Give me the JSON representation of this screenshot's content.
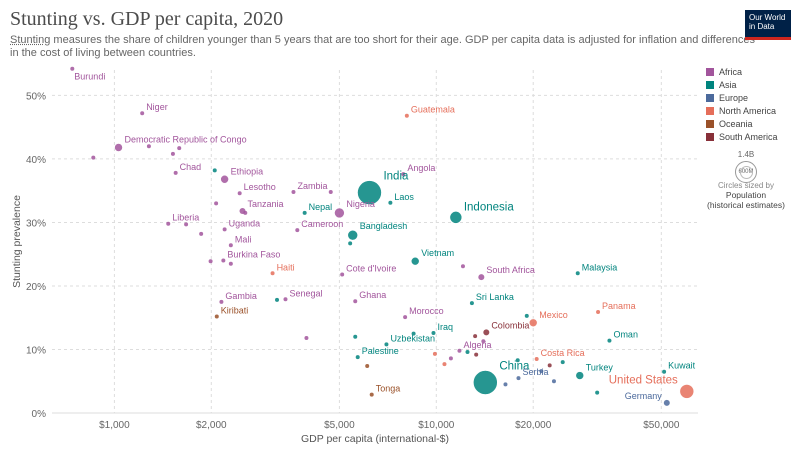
{
  "header": {
    "title": "Stunting vs. GDP per capita, 2020",
    "subtitle_link": "Stunting",
    "subtitle_rest": " measures the share of children younger than 5 years that are too short for their age. GDP per capita data is adjusted for inflation and differences in the cost of living between countries.",
    "logo_line1": "Our World",
    "logo_line2": "in Data"
  },
  "legend": {
    "items": [
      {
        "label": "Africa",
        "color": "#a2559c"
      },
      {
        "label": "Asia",
        "color": "#00847e"
      },
      {
        "label": "Europe",
        "color": "#4c6a9c"
      },
      {
        "label": "North America",
        "color": "#e56e5a"
      },
      {
        "label": "Oceania",
        "color": "#9a5129"
      },
      {
        "label": "South America",
        "color": "#883039"
      }
    ],
    "size_value": "1.4B",
    "size_value2": "600M",
    "size_caption": "Circles sized by",
    "size_caption2": "Population",
    "size_caption3": "(historical estimates)"
  },
  "chart_data": {
    "type": "scatter",
    "x_scale": "log",
    "xlabel": "GDP per capita (international-$)",
    "ylabel": "Stunting prevalence",
    "xlim": [
      640,
      65000
    ],
    "ylim": [
      0,
      54
    ],
    "x_ticks": [
      {
        "value": 1000,
        "label": "$1,000"
      },
      {
        "value": 2000,
        "label": "$2,000"
      },
      {
        "value": 5000,
        "label": "$5,000"
      },
      {
        "value": 10000,
        "label": "$10,000"
      },
      {
        "value": 20000,
        "label": "$20,000"
      },
      {
        "value": 50000,
        "label": "$50,000"
      }
    ],
    "y_ticks": [
      {
        "value": 0,
        "label": "0%"
      },
      {
        "value": 10,
        "label": "10%"
      },
      {
        "value": 20,
        "label": "20%"
      },
      {
        "value": 30,
        "label": "30%"
      },
      {
        "value": 40,
        "label": "40%"
      },
      {
        "value": 50,
        "label": "50%"
      }
    ],
    "points": [
      {
        "label": "Burundi",
        "x": 740,
        "y": 54.2,
        "region": "Africa",
        "r": 2,
        "anchor": "below"
      },
      {
        "label": "Niger",
        "x": 1220,
        "y": 47.2,
        "region": "Africa",
        "r": 2
      },
      {
        "label": "Guatemala",
        "x": 8100,
        "y": 46.8,
        "region": "North America",
        "r": 2
      },
      {
        "label": "Democratic Republic of Congo",
        "x": 1030,
        "y": 41.8,
        "region": "Africa",
        "r": 4
      },
      {
        "label": "Chad",
        "x": 1550,
        "y": 37.8,
        "region": "Africa",
        "r": 2
      },
      {
        "label": "Ethiopia",
        "x": 2200,
        "y": 36.8,
        "region": "Africa",
        "r": 4
      },
      {
        "label": "India",
        "x": 6200,
        "y": 34.7,
        "region": "Asia",
        "r": 12
      },
      {
        "label": "Angola",
        "x": 7900,
        "y": 37.6,
        "region": "Africa",
        "r": 2
      },
      {
        "label": "Lesotho",
        "x": 2450,
        "y": 34.6,
        "region": "Africa",
        "r": 2
      },
      {
        "label": "Zambia",
        "x": 3600,
        "y": 34.8,
        "region": "Africa",
        "r": 2
      },
      {
        "label": "Tanzania",
        "x": 2500,
        "y": 31.8,
        "region": "Africa",
        "r": 3
      },
      {
        "label": "Nepal",
        "x": 3900,
        "y": 31.5,
        "region": "Asia",
        "r": 2
      },
      {
        "label": "Nigeria",
        "x": 5000,
        "y": 31.5,
        "region": "Africa",
        "r": 5
      },
      {
        "label": "Laos",
        "x": 7200,
        "y": 33.1,
        "region": "Asia",
        "r": 2
      },
      {
        "label": "Indonesia",
        "x": 11500,
        "y": 30.8,
        "region": "Asia",
        "r": 6
      },
      {
        "label": "Liberia",
        "x": 1470,
        "y": 29.8,
        "region": "Africa",
        "r": 2
      },
      {
        "label": "Uganda",
        "x": 2200,
        "y": 28.9,
        "region": "Africa",
        "r": 2
      },
      {
        "label": "Cameroon",
        "x": 3700,
        "y": 28.8,
        "region": "Africa",
        "r": 2
      },
      {
        "label": "Bangladesh",
        "x": 5500,
        "y": 28.0,
        "region": "Asia",
        "r": 5
      },
      {
        "label": "Mali",
        "x": 2300,
        "y": 26.4,
        "region": "Africa",
        "r": 2
      },
      {
        "label": "Burkina Faso",
        "x": 2180,
        "y": 24.0,
        "region": "Africa",
        "r": 2
      },
      {
        "label": "Vietnam",
        "x": 8600,
        "y": 23.9,
        "region": "Asia",
        "r": 4
      },
      {
        "label": "Haiti",
        "x": 3100,
        "y": 22.0,
        "region": "North America",
        "r": 2
      },
      {
        "label": "Cote d'Ivoire",
        "x": 5100,
        "y": 21.8,
        "region": "Africa",
        "r": 2
      },
      {
        "label": "South Africa",
        "x": 13800,
        "y": 21.4,
        "region": "Africa",
        "r": 3
      },
      {
        "label": "Malaysia",
        "x": 27500,
        "y": 22.0,
        "region": "Asia",
        "r": 2
      },
      {
        "label": "Gambia",
        "x": 2150,
        "y": 17.5,
        "region": "Africa",
        "r": 2
      },
      {
        "label": "Senegal",
        "x": 3400,
        "y": 17.9,
        "region": "Africa",
        "r": 2
      },
      {
        "label": "Ghana",
        "x": 5600,
        "y": 17.6,
        "region": "Africa",
        "r": 2
      },
      {
        "label": "Sri Lanka",
        "x": 12900,
        "y": 17.3,
        "region": "Asia",
        "r": 2
      },
      {
        "label": "Kiribati",
        "x": 2080,
        "y": 15.2,
        "region": "Oceania",
        "r": 2
      },
      {
        "label": "Panama",
        "x": 31800,
        "y": 15.9,
        "region": "North America",
        "r": 2
      },
      {
        "label": "Morocco",
        "x": 8000,
        "y": 15.1,
        "region": "Africa",
        "r": 2
      },
      {
        "label": "Mexico",
        "x": 20000,
        "y": 14.2,
        "region": "North America",
        "r": 4
      },
      {
        "label": "Iraq",
        "x": 9800,
        "y": 12.6,
        "region": "Asia",
        "r": 2
      },
      {
        "label": "Colombia",
        "x": 14300,
        "y": 12.7,
        "region": "South America",
        "r": 3
      },
      {
        "label": "Oman",
        "x": 34500,
        "y": 11.4,
        "region": "Asia",
        "r": 2
      },
      {
        "label": "Uzbekistan",
        "x": 7000,
        "y": 10.8,
        "region": "Asia",
        "r": 2
      },
      {
        "label": "Algeria",
        "x": 11800,
        "y": 9.8,
        "region": "Africa",
        "r": 2
      },
      {
        "label": "Costa Rica",
        "x": 20500,
        "y": 8.5,
        "region": "North America",
        "r": 2
      },
      {
        "label": "Palestine",
        "x": 5700,
        "y": 8.8,
        "region": "Asia",
        "r": 2
      },
      {
        "label": "China",
        "x": 14200,
        "y": 4.8,
        "region": "Asia",
        "r": 12
      },
      {
        "label": "Serbia",
        "x": 18000,
        "y": 5.5,
        "region": "Europe",
        "r": 2
      },
      {
        "label": "Turkey",
        "x": 27900,
        "y": 5.9,
        "region": "Asia",
        "r": 4
      },
      {
        "label": "Kuwait",
        "x": 51000,
        "y": 6.5,
        "region": "Asia",
        "r": 2
      },
      {
        "label": "United States",
        "x": 60000,
        "y": 3.4,
        "region": "North America",
        "r": 7
      },
      {
        "label": "Germany",
        "x": 52000,
        "y": 1.6,
        "region": "Europe",
        "r": 3
      },
      {
        "label": "Tonga",
        "x": 6300,
        "y": 2.9,
        "region": "Oceania",
        "r": 2
      },
      {
        "label": "",
        "x": 860,
        "y": 40.2,
        "region": "Africa",
        "r": 2
      },
      {
        "label": "",
        "x": 1280,
        "y": 42.0,
        "region": "Africa",
        "r": 2
      },
      {
        "label": "",
        "x": 1520,
        "y": 40.8,
        "region": "Africa",
        "r": 2
      },
      {
        "label": "",
        "x": 1590,
        "y": 41.7,
        "region": "Africa",
        "r": 2
      },
      {
        "label": "",
        "x": 2050,
        "y": 38.2,
        "region": "Asia",
        "r": 2
      },
      {
        "label": "",
        "x": 2070,
        "y": 33.0,
        "region": "Africa",
        "r": 2
      },
      {
        "label": "",
        "x": 4700,
        "y": 34.8,
        "region": "Africa",
        "r": 2
      },
      {
        "label": "",
        "x": 2550,
        "y": 31.5,
        "region": "Africa",
        "r": 2
      },
      {
        "label": "",
        "x": 1670,
        "y": 29.7,
        "region": "Africa",
        "r": 2
      },
      {
        "label": "",
        "x": 1860,
        "y": 28.2,
        "region": "Africa",
        "r": 2
      },
      {
        "label": "",
        "x": 5400,
        "y": 26.7,
        "region": "Asia",
        "r": 2
      },
      {
        "label": "",
        "x": 1990,
        "y": 23.9,
        "region": "Africa",
        "r": 2
      },
      {
        "label": "",
        "x": 2300,
        "y": 23.5,
        "region": "Africa",
        "r": 2
      },
      {
        "label": "",
        "x": 12100,
        "y": 23.1,
        "region": "Africa",
        "r": 2
      },
      {
        "label": "",
        "x": 3200,
        "y": 17.8,
        "region": "Asia",
        "r": 2
      },
      {
        "label": "",
        "x": 3950,
        "y": 11.8,
        "region": "Africa",
        "r": 2
      },
      {
        "label": "",
        "x": 5600,
        "y": 12.0,
        "region": "Asia",
        "r": 2
      },
      {
        "label": "",
        "x": 8500,
        "y": 12.5,
        "region": "Asia",
        "r": 2
      },
      {
        "label": "",
        "x": 19100,
        "y": 15.3,
        "region": "Asia",
        "r": 2
      },
      {
        "label": "",
        "x": 9900,
        "y": 9.3,
        "region": "North America",
        "r": 2
      },
      {
        "label": "",
        "x": 11100,
        "y": 8.6,
        "region": "Africa",
        "r": 2
      },
      {
        "label": "",
        "x": 12500,
        "y": 9.6,
        "region": "Asia",
        "r": 2
      },
      {
        "label": "",
        "x": 13200,
        "y": 12.1,
        "region": "South America",
        "r": 2
      },
      {
        "label": "",
        "x": 13300,
        "y": 9.2,
        "region": "South America",
        "r": 2
      },
      {
        "label": "",
        "x": 10600,
        "y": 7.7,
        "region": "North America",
        "r": 2
      },
      {
        "label": "",
        "x": 14000,
        "y": 11.3,
        "region": "Africa",
        "r": 2
      },
      {
        "label": "",
        "x": 17900,
        "y": 8.3,
        "region": "Asia",
        "r": 2
      },
      {
        "label": "",
        "x": 22500,
        "y": 7.5,
        "region": "South America",
        "r": 2
      },
      {
        "label": "",
        "x": 24700,
        "y": 8.0,
        "region": "Asia",
        "r": 2
      },
      {
        "label": "",
        "x": 21200,
        "y": 6.6,
        "region": "Europe",
        "r": 2
      },
      {
        "label": "",
        "x": 16400,
        "y": 4.5,
        "region": "Europe",
        "r": 2
      },
      {
        "label": "",
        "x": 23200,
        "y": 5.0,
        "region": "Europe",
        "r": 2
      },
      {
        "label": "",
        "x": 31600,
        "y": 3.2,
        "region": "Asia",
        "r": 2
      },
      {
        "label": "",
        "x": 6100,
        "y": 7.4,
        "region": "Oceania",
        "r": 2
      }
    ]
  }
}
